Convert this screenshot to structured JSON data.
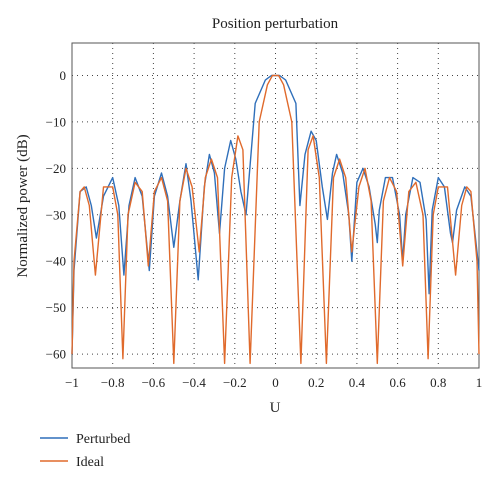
{
  "chart_data": {
    "type": "line",
    "title": "Position perturbation",
    "xlabel": "U",
    "ylabel": "Normalized power (dB)",
    "xlim": [
      -1,
      1
    ],
    "ylim": [
      -63,
      7
    ],
    "xticks": [
      -1,
      -0.8,
      -0.6,
      -0.4,
      -0.2,
      0,
      0.2,
      0.4,
      0.6,
      0.8,
      1
    ],
    "xtick_labels": [
      "−1",
      "−0.8",
      "−0.6",
      "−0.4",
      "−0.2",
      "0",
      "0.2",
      "0.4",
      "0.6",
      "0.8",
      "1"
    ],
    "yticks": [
      0,
      -10,
      -20,
      -30,
      -40,
      -50,
      -60
    ],
    "ytick_labels": [
      "0",
      "−10",
      "−20",
      "−30",
      "−40",
      "−50",
      "−60"
    ],
    "grid": true,
    "grid_style": "dotted",
    "legend_position": "below-left",
    "series": [
      {
        "name": "Perturbed",
        "color": "#2f6fba",
        "x": [
          -1.0,
          -0.99,
          -0.96,
          -0.93,
          -0.905,
          -0.88,
          -0.845,
          -0.8,
          -0.77,
          -0.745,
          -0.72,
          -0.69,
          -0.655,
          -0.62,
          -0.595,
          -0.56,
          -0.53,
          -0.5,
          -0.47,
          -0.44,
          -0.415,
          -0.38,
          -0.35,
          -0.325,
          -0.3,
          -0.275,
          -0.25,
          -0.22,
          -0.195,
          -0.17,
          -0.145,
          -0.1,
          -0.05,
          -0.02,
          0.0,
          0.02,
          0.05,
          0.1,
          0.12,
          0.145,
          0.175,
          0.2,
          0.23,
          0.255,
          0.28,
          0.3,
          0.33,
          0.36,
          0.375,
          0.4,
          0.43,
          0.46,
          0.49,
          0.5,
          0.51,
          0.54,
          0.575,
          0.61,
          0.625,
          0.64,
          0.675,
          0.71,
          0.74,
          0.755,
          0.77,
          0.8,
          0.83,
          0.86,
          0.87,
          0.89,
          0.93,
          0.96,
          1.0
        ],
        "y": [
          -60,
          -42,
          -25,
          -24,
          -28,
          -35,
          -26,
          -22,
          -28,
          -43,
          -28,
          -22,
          -26,
          -42,
          -26,
          -21,
          -26,
          -37,
          -27,
          -19,
          -27,
          -44,
          -24,
          -17,
          -21,
          -34,
          -20,
          -14,
          -18,
          -25,
          -30,
          -6,
          -1,
          0,
          0,
          0,
          -1,
          -6,
          -28,
          -17,
          -12,
          -14,
          -24,
          -31,
          -21,
          -17,
          -21,
          -30,
          -40,
          -23,
          -20,
          -24,
          -32,
          -36,
          -29,
          -22,
          -22,
          -30,
          -40,
          -30,
          -22,
          -23,
          -31,
          -47,
          -29,
          -22,
          -24,
          -34,
          -36,
          -29,
          -24,
          -26,
          -42
        ]
      },
      {
        "name": "Ideal",
        "color": "#e06a2c",
        "x": [
          -1.0,
          -0.99,
          -0.96,
          -0.94,
          -0.915,
          -0.885,
          -0.845,
          -0.8,
          -0.775,
          -0.75,
          -0.725,
          -0.69,
          -0.655,
          -0.625,
          -0.595,
          -0.56,
          -0.53,
          -0.5,
          -0.47,
          -0.44,
          -0.41,
          -0.375,
          -0.345,
          -0.315,
          -0.285,
          -0.25,
          -0.215,
          -0.185,
          -0.16,
          -0.125,
          -0.08,
          -0.04,
          -0.015,
          0.0,
          0.015,
          0.04,
          0.08,
          0.125,
          0.16,
          0.185,
          0.215,
          0.25,
          0.285,
          0.315,
          0.345,
          0.375,
          0.41,
          0.44,
          0.47,
          0.5,
          0.53,
          0.56,
          0.595,
          0.625,
          0.655,
          0.69,
          0.725,
          0.75,
          0.775,
          0.8,
          0.845,
          0.885,
          0.915,
          0.94,
          0.96,
          0.99,
          1.0
        ],
        "y": [
          -60,
          -40,
          -25,
          -24,
          -28,
          -43,
          -24,
          -24,
          -30,
          -61,
          -30,
          -23,
          -25,
          -41,
          -25,
          -22,
          -27,
          -62,
          -27,
          -20,
          -24,
          -38,
          -22,
          -18,
          -22,
          -62,
          -22,
          -13,
          -16,
          -62,
          -10,
          -2,
          0,
          0,
          0,
          -2,
          -10,
          -62,
          -16,
          -13,
          -22,
          -62,
          -22,
          -18,
          -22,
          -38,
          -24,
          -20,
          -27,
          -62,
          -27,
          -22,
          -25,
          -41,
          -25,
          -23,
          -30,
          -61,
          -30,
          -24,
          -24,
          -43,
          -28,
          -24,
          -25,
          -40,
          -60
        ]
      }
    ]
  }
}
